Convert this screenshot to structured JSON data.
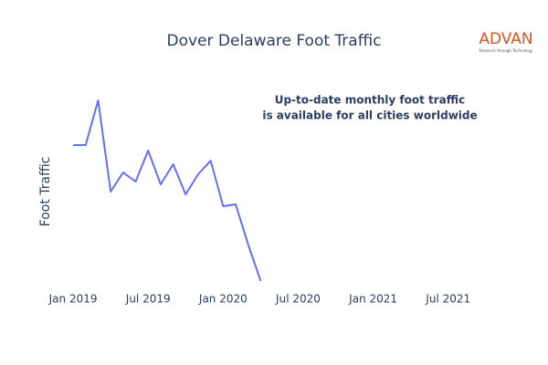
{
  "chart_data": {
    "type": "line",
    "title": "Dover Delaware Foot Traffic",
    "y_label": "Foot Traffic",
    "annotation": [
      "Up-to-date monthly foot traffic",
      "is available for all cities worldwide"
    ],
    "logo": {
      "name": "ADVAN",
      "tagline": "Research through Technology"
    },
    "x": [
      "2019-01",
      "2019-02",
      "2019-03",
      "2019-04",
      "2019-05",
      "2019-06",
      "2019-07",
      "2019-08",
      "2019-09",
      "2019-10",
      "2019-11",
      "2019-12",
      "2020-01",
      "2020-02",
      "2020-03",
      "2020-04"
    ],
    "values": [
      161,
      161,
      210,
      110,
      131,
      121,
      155,
      118,
      140,
      107,
      129,
      144,
      94,
      96,
      52,
      12
    ],
    "color": "#636efa",
    "xlim": [
      "2018-11",
      "2021-10"
    ],
    "ylim": [
      0,
      220
    ],
    "xticks": [
      {
        "value": "2019-01",
        "label": "Jan 2019"
      },
      {
        "value": "2019-07",
        "label": "Jul 2019"
      },
      {
        "value": "2020-01",
        "label": "Jan 2020"
      },
      {
        "value": "2020-07",
        "label": "Jul 2020"
      },
      {
        "value": "2021-01",
        "label": "Jan 2021"
      },
      {
        "value": "2021-07",
        "label": "Jul 2021"
      }
    ],
    "grid": false
  }
}
